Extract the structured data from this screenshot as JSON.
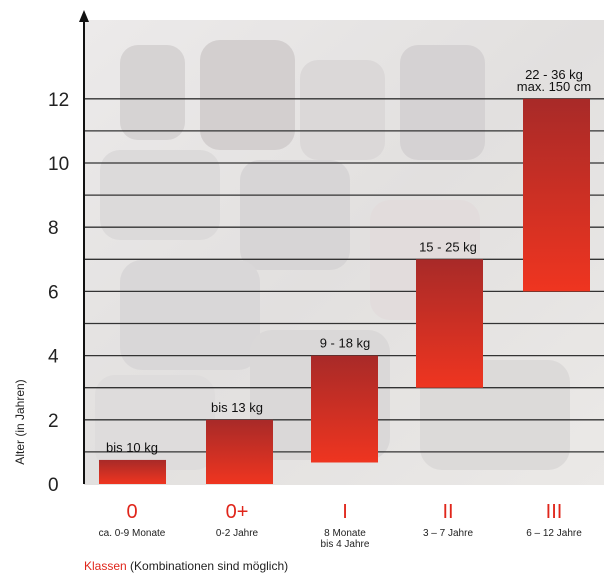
{
  "chart_data": {
    "type": "bar",
    "subtype": "floating-range",
    "title": "",
    "ylabel": "Alter (in Jahren)",
    "ylim": [
      0,
      14
    ],
    "y_ticks": [
      0,
      2,
      4,
      6,
      8,
      10,
      12
    ],
    "grid": true,
    "bars": [
      {
        "class": "0",
        "label": [
          "bis 10 kg"
        ],
        "age_range": [
          "ca. 0-9 Monate"
        ],
        "y_start": 0,
        "y_end": 0.75
      },
      {
        "class": "0+",
        "label": [
          "bis 13 kg"
        ],
        "age_range": [
          "0-2 Jahre"
        ],
        "y_start": 0,
        "y_end": 2
      },
      {
        "class": "I",
        "label": [
          "9 - 18 kg"
        ],
        "age_range": [
          "8 Monate",
          "bis 4 Jahre"
        ],
        "y_start": 0.67,
        "y_end": 4
      },
      {
        "class": "II",
        "label": [
          "15 - 25 kg"
        ],
        "age_range": [
          "3 – 7 Jahre"
        ],
        "y_start": 3,
        "y_end": 7
      },
      {
        "class": "III",
        "label": [
          "22 - 36 kg",
          "max. 150 cm"
        ],
        "age_range": [
          "6 – 12 Jahre"
        ],
        "y_start": 6,
        "y_end": 12
      }
    ],
    "footnote": {
      "accent": "Klassen",
      "rest": " (Kombinationen sind möglich)"
    },
    "colors": {
      "bar_top": "#a82a28",
      "bar_bottom": "#ef3520",
      "class_label": "#e0261b",
      "grid": "#333333"
    }
  }
}
